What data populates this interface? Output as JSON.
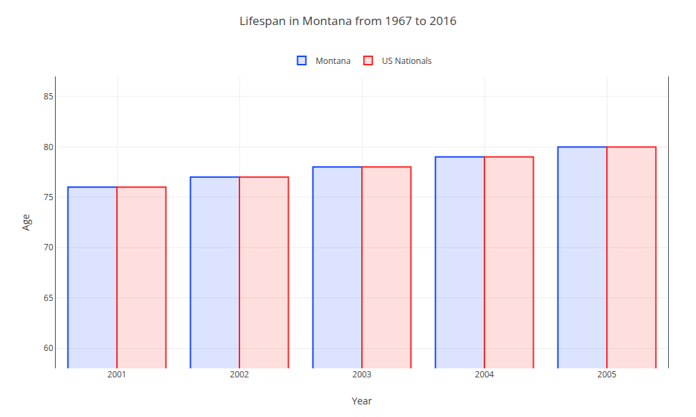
{
  "chart_data": {
    "type": "bar",
    "title": "Lifespan in Montana from 1967 to 2016",
    "xlabel": "Year",
    "ylabel": "Age",
    "categories": [
      "2001",
      "2002",
      "2003",
      "2004",
      "2005"
    ],
    "series": [
      {
        "name": "Montana",
        "color": "#1144ff",
        "values": [
          76,
          77,
          78,
          79,
          80
        ]
      },
      {
        "name": "US Nationals",
        "color": "#ff2222",
        "values": [
          76,
          77,
          78,
          79,
          80
        ]
      }
    ],
    "ylim": [
      58,
      87
    ],
    "yticks": [
      60,
      65,
      70,
      75,
      80,
      85
    ],
    "grid": true,
    "legend": "top"
  }
}
